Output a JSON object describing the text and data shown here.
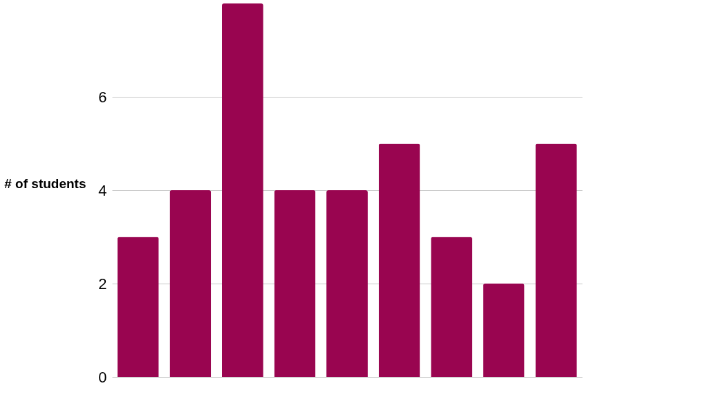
{
  "chart_data": {
    "type": "bar",
    "ylabel": "# of students",
    "categories": [
      null,
      null,
      null,
      null,
      null,
      null,
      null,
      null,
      null
    ],
    "values": [
      3,
      4,
      8,
      4,
      4,
      5,
      3,
      2,
      5
    ],
    "color": "#990550",
    "ylim": [
      0,
      8
    ],
    "yticks": [
      0,
      2,
      4,
      6
    ],
    "grid": "y"
  }
}
